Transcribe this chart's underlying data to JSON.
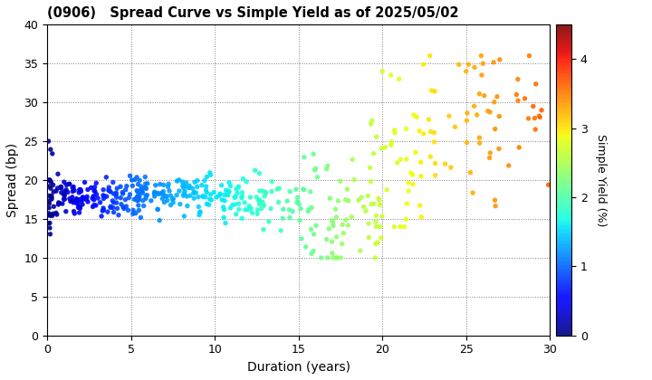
{
  "title": "(0906)   Spread Curve vs Simple Yield as of 2025/05/02",
  "xlabel": "Duration (years)",
  "ylabel": "Spread (bp)",
  "colorbar_label": "Simple Yield (%)",
  "xlim": [
    0,
    30
  ],
  "ylim": [
    0,
    40
  ],
  "xticks": [
    0,
    5,
    10,
    15,
    20,
    25,
    30
  ],
  "yticks": [
    0,
    5,
    10,
    15,
    20,
    25,
    30,
    35,
    40
  ],
  "colorbar_ticks": [
    0,
    1,
    2,
    3,
    4
  ],
  "colormap": "jet",
  "color_vmin": 0.0,
  "color_vmax": 4.5,
  "scatter_size": 15,
  "background_color": "#ffffff",
  "seed": 42
}
